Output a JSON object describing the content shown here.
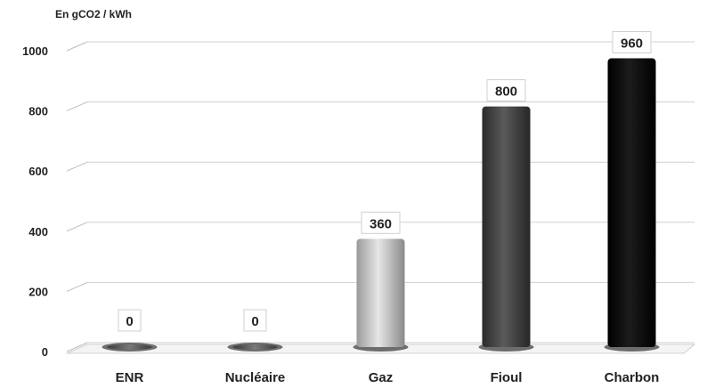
{
  "chart_data": {
    "type": "bar",
    "unit_label": "En gCO2 / kWh",
    "categories": [
      "ENR",
      "Nucléaire",
      "Gaz",
      "Fioul",
      "Charbon"
    ],
    "values": [
      0,
      0,
      360,
      800,
      960
    ],
    "data_labels": [
      "0",
      "0",
      "360",
      "800",
      "960"
    ],
    "colors": [
      "#555555",
      "#555555",
      "#c8c8c8",
      "#444444",
      "#0a0a0a"
    ],
    "ylim": [
      0,
      1000
    ],
    "yticks": [
      "0",
      "200",
      "400",
      "600",
      "800",
      "1000"
    ],
    "grid": true,
    "legend": "none"
  }
}
